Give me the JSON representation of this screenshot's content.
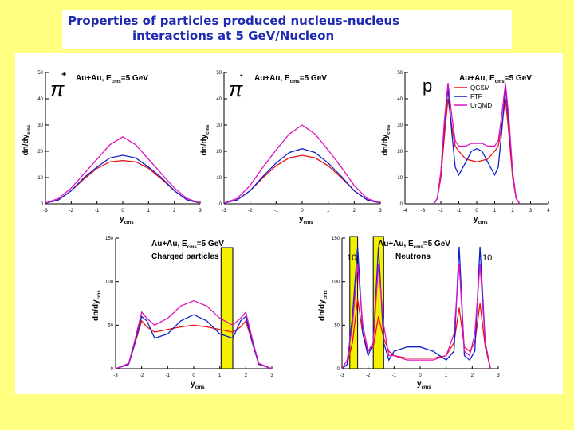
{
  "title": {
    "line1": "Properties of particles produced nucleus-nucleus",
    "line2": "interactions at 5 GeV/Nucleon"
  },
  "colors": {
    "background": "#ffff80",
    "title": "#1f2ab0",
    "QGSM": "#ee1111",
    "FTF": "#1020cc",
    "UrQMD": "#e010c0",
    "highlight": "#f5f000"
  },
  "chart_data": [
    {
      "id": "pi_plus",
      "type": "line",
      "particle_symbol": "π",
      "particle_charge": "+",
      "annotation": "Au+Au, E",
      "annotation_sub": "cms",
      "annotation_tail": "=5 GeV",
      "ylabel": "dn/dy",
      "ylabel_sub": "cms",
      "xlabel": "y",
      "xlabel_sub": "cms",
      "xlim": [
        -3,
        3
      ],
      "ylim": [
        0,
        50
      ],
      "xticks": [
        "-3",
        "-2",
        "-1",
        "0",
        "1",
        "2",
        "3"
      ],
      "yticks": [
        "0",
        "10",
        "20",
        "30",
        "40",
        "50"
      ],
      "x": [
        -3,
        -2.5,
        -2,
        -1.5,
        -1,
        -0.5,
        0,
        0.5,
        1,
        1.5,
        2,
        2.5,
        3
      ],
      "series": [
        {
          "name": "QGSM",
          "values": [
            0.3,
            1.5,
            5,
            9.5,
            13.5,
            16,
            16.5,
            16,
            13.5,
            9.5,
            5,
            1.5,
            0.3
          ]
        },
        {
          "name": "FTF",
          "values": [
            0.3,
            1.5,
            5,
            10,
            14,
            17.5,
            18.5,
            17.5,
            14,
            10,
            5,
            1.5,
            0.3
          ]
        },
        {
          "name": "UrQMD",
          "values": [
            0.3,
            2,
            6,
            11.5,
            17,
            22.5,
            25.5,
            22.5,
            17,
            11.5,
            6,
            2,
            0.3
          ]
        }
      ]
    },
    {
      "id": "pi_minus",
      "type": "line",
      "particle_symbol": "π",
      "particle_charge": "-",
      "annotation": "Au+Au, E",
      "annotation_sub": "cms",
      "annotation_tail": "=5 GeV",
      "ylabel": "dn/dy",
      "ylabel_sub": "cms",
      "xlabel": "y",
      "xlabel_sub": "cms",
      "xlim": [
        -3,
        3
      ],
      "ylim": [
        0,
        50
      ],
      "xticks": [
        "-3",
        "-2",
        "-1",
        "0",
        "1",
        "2",
        "3"
      ],
      "yticks": [
        "0",
        "10",
        "20",
        "30",
        "40",
        "50"
      ],
      "x": [
        -3,
        -2.5,
        -2,
        -1.5,
        -1,
        -0.5,
        0,
        0.5,
        1,
        1.5,
        2,
        2.5,
        3
      ],
      "series": [
        {
          "name": "QGSM",
          "values": [
            0.3,
            1.5,
            5,
            10,
            14.5,
            17.5,
            18.5,
            17.5,
            14.5,
            10,
            5,
            1.5,
            0.3
          ]
        },
        {
          "name": "FTF",
          "values": [
            0.3,
            1.5,
            5,
            10.5,
            15.5,
            19.5,
            21,
            19.5,
            15.5,
            10.5,
            5,
            1.5,
            0.3
          ]
        },
        {
          "name": "UrQMD",
          "values": [
            0.3,
            2,
            7,
            14,
            20.5,
            26.5,
            30,
            26.5,
            20.5,
            14,
            7,
            2,
            0.3
          ]
        }
      ]
    },
    {
      "id": "proton",
      "type": "line",
      "particle_symbol": "p",
      "annotation": "Au+Au, E",
      "annotation_sub": "cms",
      "annotation_tail": "=5 GeV",
      "ylabel": "dn/dy",
      "ylabel_sub": "cms",
      "xlabel": "y",
      "xlabel_sub": "cms",
      "xlim": [
        -4,
        4
      ],
      "ylim": [
        0,
        50
      ],
      "xticks": [
        "-4",
        "-3",
        "-2",
        "-1",
        "0",
        "1",
        "2",
        "3",
        "4"
      ],
      "yticks": [
        "0",
        "10",
        "20",
        "30",
        "40",
        "50"
      ],
      "legend": [
        "QGSM",
        "FTF",
        "UrQMD"
      ],
      "x": [
        -2.4,
        -2.2,
        -2,
        -1.8,
        -1.6,
        -1.4,
        -1.2,
        -1,
        -0.6,
        -0.3,
        0,
        0.3,
        0.6,
        1,
        1.2,
        1.4,
        1.6,
        1.8,
        2,
        2.2,
        2.4
      ],
      "series": [
        {
          "name": "QGSM",
          "values": [
            0,
            2,
            10,
            26,
            40,
            30,
            22,
            20,
            17,
            16.5,
            16,
            16.5,
            17,
            20,
            22,
            30,
            40,
            26,
            10,
            2,
            0
          ]
        },
        {
          "name": "FTF",
          "values": [
            0,
            2,
            12,
            30,
            44,
            28,
            14,
            11,
            16,
            20,
            21,
            20,
            16,
            11,
            14,
            28,
            44,
            30,
            12,
            2,
            0
          ]
        },
        {
          "name": "UrQMD",
          "values": [
            0,
            2,
            12,
            32,
            46,
            34,
            24,
            22,
            22,
            23,
            23,
            23,
            22,
            22,
            24,
            34,
            46,
            32,
            12,
            2,
            0
          ]
        }
      ]
    },
    {
      "id": "charged",
      "type": "line",
      "annotation": "Au+Au, E",
      "annotation_sub": "cms",
      "annotation_tail": "=5 GeV",
      "subtitle": "Charged particles",
      "ylabel": "dn/dy",
      "ylabel_sub": "cms",
      "xlabel": "y",
      "xlabel_sub": "cms",
      "xlim": [
        -3,
        3
      ],
      "ylim": [
        0,
        150
      ],
      "xticks": [
        "-3",
        "-2",
        "-1",
        "0",
        "1",
        "2",
        "3"
      ],
      "yticks": [
        "0",
        "50",
        "100",
        "150"
      ],
      "highlight_x": [
        1.05,
        1.5
      ],
      "x": [
        -3,
        -2.5,
        -2.3,
        -2,
        -1.8,
        -1.5,
        -1,
        -0.5,
        0,
        0.5,
        1,
        1.5,
        1.8,
        2,
        2.3,
        2.5,
        3
      ],
      "series": [
        {
          "name": "QGSM",
          "values": [
            0,
            5,
            25,
            55,
            48,
            42,
            45,
            48,
            50,
            48,
            45,
            42,
            48,
            55,
            25,
            5,
            0
          ]
        },
        {
          "name": "FTF",
          "values": [
            0,
            5,
            25,
            60,
            55,
            35,
            40,
            55,
            62,
            55,
            40,
            35,
            55,
            60,
            25,
            5,
            0
          ]
        },
        {
          "name": "UrQMD",
          "values": [
            0,
            6,
            28,
            65,
            58,
            50,
            58,
            72,
            78,
            72,
            58,
            50,
            58,
            65,
            28,
            6,
            0
          ]
        }
      ]
    },
    {
      "id": "neutrons",
      "type": "line",
      "annotation": "Au+Au, E",
      "annotation_sub": "cms",
      "annotation_tail": "=5 GeV",
      "subtitle": "Neutrons",
      "ylabel": "dn/dy",
      "ylabel_sub": "cms",
      "xlabel": "y",
      "xlabel_sub": "cms",
      "xlim": [
        -3,
        3
      ],
      "ylim": [
        0,
        150
      ],
      "xticks": [
        "-3",
        "-2",
        "-1",
        "0",
        "1",
        "2",
        "3"
      ],
      "yticks": [
        "0",
        "50",
        "100",
        "150"
      ],
      "marker_labels": [
        "10",
        "10"
      ],
      "highlight_x": [
        [
          -2.7,
          -2.4
        ],
        [
          -1.8,
          -1.4
        ]
      ],
      "x": [
        -3,
        -2.8,
        -2.6,
        -2.4,
        -2.2,
        -2,
        -1.8,
        -1.6,
        -1.4,
        -1.2,
        -1,
        -0.5,
        0,
        0.5,
        1,
        1.3,
        1.5,
        1.7,
        1.9,
        2.1,
        2.3,
        2.5,
        2.7
      ],
      "series": [
        {
          "name": "QGSM",
          "values": [
            0,
            5,
            30,
            80,
            40,
            20,
            25,
            60,
            35,
            20,
            15,
            12,
            12,
            12,
            15,
            30,
            70,
            25,
            20,
            30,
            75,
            25,
            0
          ]
        },
        {
          "name": "FTF",
          "values": [
            0,
            5,
            60,
            140,
            40,
            15,
            30,
            140,
            30,
            10,
            20,
            25,
            25,
            20,
            10,
            20,
            140,
            15,
            10,
            20,
            140,
            30,
            0
          ]
        },
        {
          "name": "UrQMD",
          "values": [
            0,
            10,
            50,
            120,
            50,
            20,
            30,
            120,
            50,
            15,
            15,
            10,
            10,
            10,
            15,
            40,
            120,
            20,
            15,
            40,
            120,
            30,
            0
          ]
        }
      ]
    }
  ]
}
